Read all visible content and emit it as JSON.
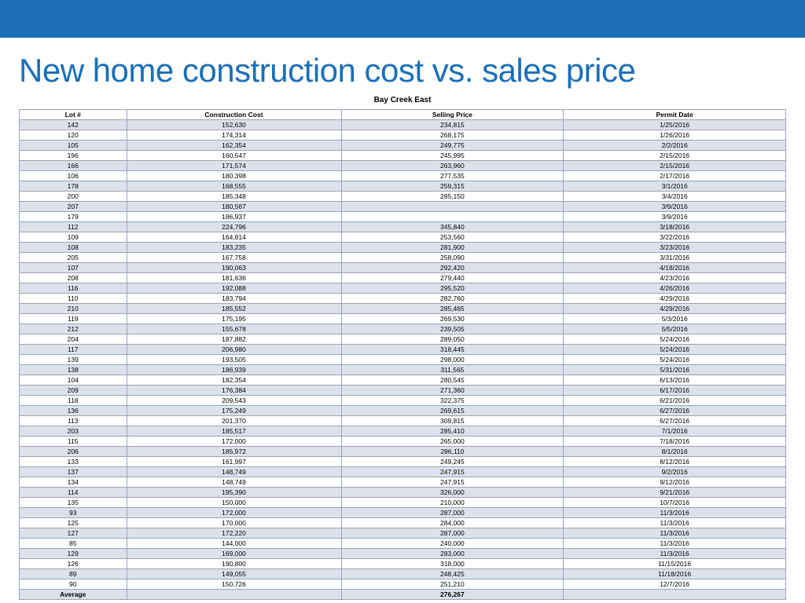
{
  "header_bar_color": "#1a6fb8",
  "title": "New home construction cost vs. sales price",
  "title_color": "#1a6fb8",
  "subtitle": "Bay Creek East",
  "table": {
    "columns": [
      "Lot #",
      "Construction Cost",
      "Selling Price",
      "Permit Date"
    ],
    "stripe_color": "#dde1ec",
    "border_color": "#9aa4b8",
    "rows": [
      [
        "142",
        "152,630",
        "234,815",
        "1/25/2016"
      ],
      [
        "120",
        "174,314",
        "268,175",
        "1/26/2016"
      ],
      [
        "105",
        "162,354",
        "249,775",
        "2/2/2016"
      ],
      [
        "196",
        "160,547",
        "245,995",
        "2/15/2016"
      ],
      [
        "166",
        "171,574",
        "263,960",
        "2/15/2016"
      ],
      [
        "106",
        "180,398",
        "277,535",
        "2/17/2016"
      ],
      [
        "178",
        "168,555",
        "259,315",
        "3/1/2016"
      ],
      [
        "200",
        "185,348",
        "285,150",
        "3/4/2016"
      ],
      [
        "207",
        "180,567",
        "",
        "3/9/2016"
      ],
      [
        "179",
        "186,937",
        "",
        "3/9/2016"
      ],
      [
        "112",
        "224,796",
        "345,840",
        "3/18/2016"
      ],
      [
        "109",
        "164,814",
        "253,560",
        "3/22/2016"
      ],
      [
        "108",
        "183,235",
        "281,900",
        "3/23/2016"
      ],
      [
        "205",
        "167,758",
        "258,090",
        "3/31/2016"
      ],
      [
        "107",
        "190,063",
        "292,420",
        "4/18/2016"
      ],
      [
        "208",
        "181,636",
        "279,440",
        "4/23/2016"
      ],
      [
        "116",
        "192,088",
        "295,520",
        "4/26/2016"
      ],
      [
        "110",
        "183,794",
        "282,760",
        "4/29/2016"
      ],
      [
        "210",
        "185,552",
        "285,465",
        "4/29/2016"
      ],
      [
        "119",
        "175,195",
        "269,530",
        "5/3/2016"
      ],
      [
        "212",
        "155,678",
        "239,505",
        "5/5/2016"
      ],
      [
        "204",
        "187,882",
        "289,050",
        "5/24/2016"
      ],
      [
        "117",
        "206,980",
        "318,445",
        "5/24/2016"
      ],
      [
        "139",
        "193,505",
        "298,000",
        "5/24/2016"
      ],
      [
        "138",
        "186,939",
        "311,565",
        "5/31/2016"
      ],
      [
        "104",
        "182,354",
        "280,545",
        "6/13/2016"
      ],
      [
        "209",
        "176,384",
        "271,360",
        "6/17/2016"
      ],
      [
        "118",
        "209,543",
        "322,375",
        "6/21/2016"
      ],
      [
        "136",
        "175,249",
        "269,615",
        "6/27/2016"
      ],
      [
        "113",
        "201,370",
        "309,815",
        "6/27/2016"
      ],
      [
        "203",
        "185,517",
        "285,410",
        "7/1/2016"
      ],
      [
        "115",
        "172,000",
        "265,000",
        "7/18/2016"
      ],
      [
        "206",
        "185,972",
        "286,110",
        "8/1/2016"
      ],
      [
        "133",
        "161,997",
        "249,245",
        "8/12/2016"
      ],
      [
        "137",
        "148,749",
        "247,915",
        "9/2/2016"
      ],
      [
        "134",
        "148,749",
        "247,915",
        "9/12/2016"
      ],
      [
        "114",
        "195,390",
        "326,000",
        "9/21/2016"
      ],
      [
        "135",
        "150,000",
        "210,000",
        "10/7/2016"
      ],
      [
        "93",
        "172,000",
        "287,000",
        "11/3/2016"
      ],
      [
        "125",
        "170,000",
        "284,000",
        "11/3/2016"
      ],
      [
        "127",
        "172,220",
        "287,000",
        "11/3/2016"
      ],
      [
        "85",
        "144,000",
        "240,000",
        "11/3/2016"
      ],
      [
        "129",
        "169,000",
        "283,000",
        "11/3/2016"
      ],
      [
        "126",
        "190,800",
        "318,000",
        "11/15/2016"
      ],
      [
        "89",
        "149,055",
        "248,425",
        "11/18/2016"
      ],
      [
        "90",
        "150,726",
        "251,210",
        "12/7/2016"
      ]
    ],
    "footer": [
      "Average",
      "",
      "276,267",
      ""
    ]
  }
}
